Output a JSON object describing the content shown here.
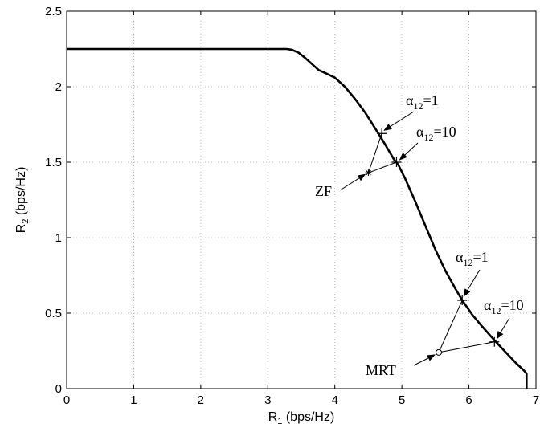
{
  "chart_data": {
    "type": "line",
    "title": "",
    "xlabel": {
      "main": "R",
      "sub": "1",
      "unit": " (bps/Hz)"
    },
    "ylabel": {
      "main": "R",
      "sub": "2",
      "unit": " (bps/Hz)"
    },
    "xlim": [
      0,
      7
    ],
    "ylim": [
      0,
      2.5
    ],
    "xticks": [
      "0",
      "1",
      "2",
      "3",
      "4",
      "5",
      "6",
      "7"
    ],
    "yticks": [
      "0",
      "0.5",
      "1",
      "1.5",
      "2",
      "2.5"
    ],
    "grid": true,
    "series": [
      {
        "name": "",
        "x": [
          0,
          3.28,
          3.36,
          3.46,
          3.56,
          3.66,
          3.76,
          3.86,
          4.0,
          4.15,
          4.3,
          4.45,
          4.55,
          4.65,
          4.72,
          4.8,
          4.88,
          4.95,
          5.05,
          5.2,
          5.35,
          5.5,
          5.65,
          5.8,
          5.9,
          6.05,
          6.2,
          6.38,
          6.55,
          6.7,
          6.82,
          6.86,
          6.86
        ],
        "y": [
          2.25,
          2.25,
          2.245,
          2.225,
          2.19,
          2.15,
          2.11,
          2.09,
          2.06,
          2.0,
          1.92,
          1.83,
          1.76,
          1.69,
          1.64,
          1.58,
          1.52,
          1.48,
          1.39,
          1.24,
          1.08,
          0.92,
          0.78,
          0.66,
          0.585,
          0.49,
          0.41,
          0.32,
          0.24,
          0.17,
          0.12,
          0.1,
          0
        ]
      }
    ],
    "points": [
      {
        "name": "ZF",
        "marker": "star",
        "x": 4.5,
        "y": 1.43
      },
      {
        "name": "MRT",
        "marker": "circle",
        "x": 5.55,
        "y": 0.24
      },
      {
        "name": "ZF alpha1",
        "marker": "plus",
        "x": 4.7,
        "y": 1.69
      },
      {
        "name": "ZF alpha10",
        "marker": "plus",
        "x": 4.92,
        "y": 1.5
      },
      {
        "name": "MRT alpha1",
        "marker": "plus",
        "x": 5.9,
        "y": 0.585
      },
      {
        "name": "MRT alpha10",
        "marker": "plus",
        "x": 6.38,
        "y": 0.31
      }
    ],
    "annotations": [
      {
        "text_pre": "α",
        "text_sub": "12",
        "text_post": "=1",
        "anchor_x": 4.7,
        "anchor_y": 1.69
      },
      {
        "text_pre": "α",
        "text_sub": "12",
        "text_post": "=10",
        "anchor_x": 4.92,
        "anchor_y": 1.5
      },
      {
        "text": "ZF",
        "anchor_x": 4.5,
        "anchor_y": 1.43
      },
      {
        "text_pre": "α",
        "text_sub": "12",
        "text_post": "=1",
        "anchor_x": 5.9,
        "anchor_y": 0.585
      },
      {
        "text_pre": "α",
        "text_sub": "12",
        "text_post": "=10",
        "anchor_x": 6.38,
        "anchor_y": 0.31
      },
      {
        "text": "MRT",
        "anchor_x": 5.55,
        "anchor_y": 0.24
      }
    ]
  }
}
